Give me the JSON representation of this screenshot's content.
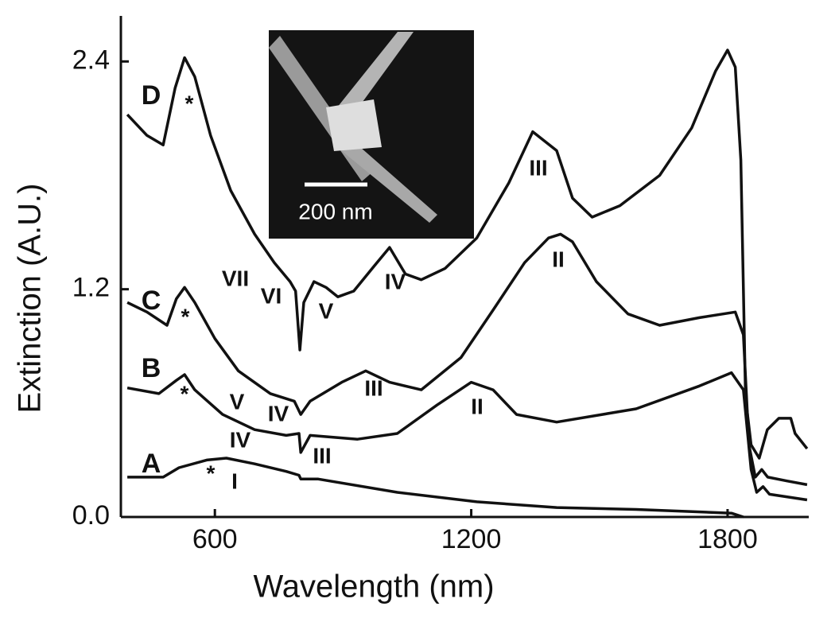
{
  "chart_data": {
    "type": "line",
    "x_label": "Wavelength (nm)",
    "y_label": "Extinction (A.U.)",
    "xlim": [
      380,
      1990
    ],
    "ylim": [
      0,
      2.64
    ],
    "xticks": [
      600,
      1200,
      1800
    ],
    "yticks": [
      {
        "value": 0,
        "label": "0.0"
      },
      {
        "value": 1.2,
        "label": "1.2"
      },
      {
        "value": 2.4,
        "label": "2.4"
      }
    ],
    "series": [
      {
        "name": "A",
        "color": "#111111",
        "x": [
          395,
          479,
          516,
          581,
          627,
          693,
          767,
          797,
          801,
          842,
          1027,
          1213,
          1400,
          1586,
          1809,
          1837
        ],
        "values": [
          0.21,
          0.21,
          0.26,
          0.3,
          0.31,
          0.28,
          0.24,
          0.22,
          0.2,
          0.2,
          0.13,
          0.08,
          0.05,
          0.04,
          0.02,
          0.0
        ],
        "annotations": [
          "*",
          "I"
        ]
      },
      {
        "name": "B",
        "color": "#111111",
        "x": [
          395,
          469,
          510,
          529,
          553,
          618,
          693,
          767,
          797,
          801,
          823,
          934,
          1027,
          1120,
          1200,
          1251,
          1306,
          1400,
          1586,
          1734,
          1809,
          1837,
          1855,
          1868,
          1883,
          1898,
          1986
        ],
        "values": [
          0.68,
          0.65,
          0.72,
          0.75,
          0.67,
          0.54,
          0.46,
          0.43,
          0.44,
          0.34,
          0.43,
          0.41,
          0.44,
          0.59,
          0.71,
          0.67,
          0.54,
          0.5,
          0.57,
          0.69,
          0.76,
          0.67,
          0.25,
          0.13,
          0.16,
          0.12,
          0.09
        ],
        "annotations": [
          "*",
          "IV",
          "III",
          "II"
        ]
      },
      {
        "name": "C",
        "color": "#111111",
        "x": [
          395,
          441,
          488,
          510,
          529,
          553,
          600,
          655,
          730,
          786,
          801,
          823,
          897,
          953,
          1009,
          1083,
          1176,
          1251,
          1325,
          1381,
          1409,
          1437,
          1493,
          1567,
          1641,
          1734,
          1818,
          1837,
          1850,
          1865,
          1880,
          1894,
          1939,
          1986
        ],
        "values": [
          1.13,
          1.08,
          1.01,
          1.15,
          1.21,
          1.13,
          0.94,
          0.77,
          0.65,
          0.61,
          0.54,
          0.61,
          0.71,
          0.77,
          0.71,
          0.67,
          0.84,
          1.09,
          1.34,
          1.47,
          1.49,
          1.45,
          1.24,
          1.07,
          1.01,
          1.05,
          1.08,
          0.96,
          0.38,
          0.21,
          0.25,
          0.21,
          0.19,
          0.17
        ],
        "annotations": [
          "*",
          "V",
          "IV",
          "III",
          "II"
        ]
      },
      {
        "name": "D",
        "color": "#111111",
        "x": [
          395,
          441,
          479,
          507,
          529,
          553,
          590,
          637,
          693,
          739,
          776,
          789,
          799,
          808,
          832,
          860,
          888,
          925,
          972,
          1009,
          1046,
          1083,
          1139,
          1213,
          1288,
          1344,
          1400,
          1437,
          1483,
          1548,
          1641,
          1716,
          1772,
          1800,
          1818,
          1831,
          1842,
          1855,
          1874,
          1893,
          1920,
          1948,
          1958,
          1986
        ],
        "values": [
          2.12,
          2.01,
          1.96,
          2.26,
          2.42,
          2.32,
          2.01,
          1.72,
          1.49,
          1.34,
          1.24,
          1.19,
          0.88,
          1.13,
          1.24,
          1.21,
          1.16,
          1.19,
          1.32,
          1.42,
          1.28,
          1.25,
          1.31,
          1.47,
          1.76,
          2.03,
          1.93,
          1.68,
          1.58,
          1.64,
          1.8,
          2.05,
          2.35,
          2.46,
          2.37,
          1.88,
          0.63,
          0.38,
          0.31,
          0.46,
          0.52,
          0.52,
          0.44,
          0.36
        ],
        "annotations": [
          "*",
          "VII",
          "VI",
          "V",
          "IV",
          "III"
        ]
      }
    ],
    "inset": {
      "scale_label": "200 nm"
    }
  }
}
